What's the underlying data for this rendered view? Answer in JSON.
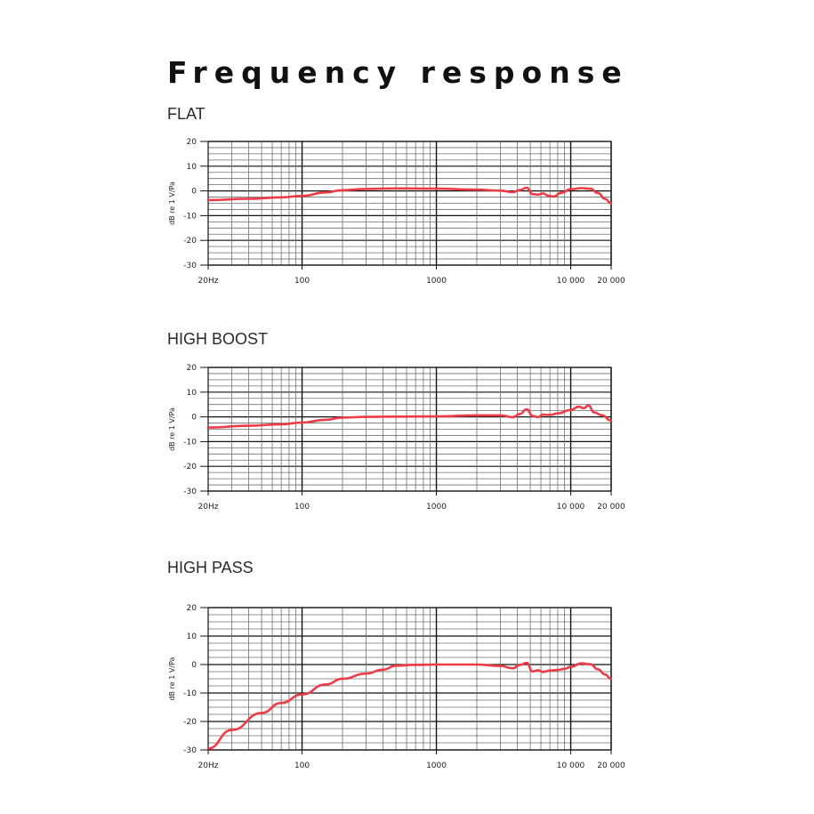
{
  "page": {
    "title": "Frequency response"
  },
  "colors": {
    "curve": "#ef3b47",
    "grid_minor": "#6f6f6f",
    "grid_major": "#111111"
  },
  "chart_data": [
    {
      "type": "line",
      "title": "FLAT",
      "xlabel": "",
      "ylabel": "dB re 1 V/Pa",
      "x_scale": "log",
      "xlim": [
        20,
        20000
      ],
      "ylim": [
        -30,
        20
      ],
      "x_tick_values": [
        20,
        100,
        1000,
        10000,
        20000
      ],
      "x_tick_labels": [
        "20Hz",
        "100",
        "1000",
        "10 000",
        "20 000"
      ],
      "y_tick_values": [
        20,
        10,
        0,
        -10,
        -20,
        -30
      ],
      "y_tick_labels": [
        "20",
        "10",
        "0",
        "-10",
        "-20",
        "-30"
      ],
      "grid": true,
      "series": [
        {
          "x": [
            20,
            40,
            70,
            100,
            150,
            200,
            300,
            500,
            1000,
            2000,
            3000,
            3700,
            4200,
            4700,
            5200,
            5700,
            6200,
            6800,
            7400,
            8500,
            10000,
            12000,
            14000,
            16000,
            18000,
            20000
          ],
          "y": [
            -3.7,
            -3.2,
            -2.6,
            -2,
            -0.6,
            0.3,
            0.8,
            1,
            0.9,
            0.5,
            0.1,
            -0.5,
            0.4,
            1.3,
            -1.3,
            -1.5,
            -1.0,
            -1.9,
            -2.3,
            -0.8,
            0.7,
            1.1,
            0.9,
            -0.9,
            -3.2,
            -5
          ]
        }
      ]
    },
    {
      "type": "line",
      "title": "HIGH BOOST",
      "xlabel": "",
      "ylabel": "dB re 1 V/Pa",
      "x_scale": "log",
      "xlim": [
        20,
        20000
      ],
      "ylim": [
        -30,
        20
      ],
      "x_tick_values": [
        20,
        100,
        1000,
        10000,
        20000
      ],
      "x_tick_labels": [
        "20Hz",
        "100",
        "1000",
        "10 000",
        "20 000"
      ],
      "y_tick_values": [
        20,
        10,
        0,
        -10,
        -20,
        -30
      ],
      "y_tick_labels": [
        "20",
        "10",
        "0",
        "-10",
        "-20",
        "-30"
      ],
      "grid": true,
      "series": [
        {
          "x": [
            20,
            40,
            70,
            100,
            150,
            200,
            300,
            500,
            1000,
            2000,
            3000,
            3700,
            4200,
            4700,
            5200,
            5700,
            6200,
            7000,
            8000,
            10000,
            11500,
            12500,
            13500,
            15000,
            17000,
            20000
          ],
          "y": [
            -4.3,
            -3.6,
            -3,
            -2.3,
            -1.2,
            -0.3,
            0,
            0.1,
            0.2,
            0.6,
            0.6,
            -0.1,
            1.2,
            3.1,
            0.4,
            -0.1,
            0.9,
            0.8,
            1.4,
            2.8,
            4.1,
            3.5,
            4.6,
            1.8,
            0.7,
            -1.5
          ]
        }
      ]
    },
    {
      "type": "line",
      "title": "HIGH PASS",
      "xlabel": "",
      "ylabel": "dB re 1 V/Pa",
      "x_scale": "log",
      "xlim": [
        20,
        20000
      ],
      "ylim": [
        -30,
        20
      ],
      "x_tick_values": [
        20,
        100,
        1000,
        10000,
        20000
      ],
      "x_tick_labels": [
        "20Hz",
        "100",
        "1000",
        "10 000",
        "20 000"
      ],
      "y_tick_values": [
        20,
        10,
        0,
        -10,
        -20,
        -30
      ],
      "y_tick_labels": [
        "20",
        "10",
        "0",
        "-10",
        "-20",
        "-30"
      ],
      "grid": true,
      "series": [
        {
          "x": [
            20,
            30,
            50,
            70,
            100,
            150,
            200,
            300,
            400,
            500,
            700,
            1000,
            2000,
            3000,
            3700,
            4200,
            4700,
            5200,
            5700,
            6200,
            7000,
            8000,
            9000,
            10000,
            12000,
            14000,
            16000,
            18000,
            20000
          ],
          "y": [
            -29.5,
            -23,
            -17,
            -13.5,
            -10.5,
            -7,
            -5,
            -3.2,
            -1.8,
            -0.4,
            -0.1,
            0,
            0,
            -0.5,
            -1.3,
            -0.1,
            0.6,
            -2.4,
            -2.0,
            -2.6,
            -2.1,
            -1.9,
            -1.5,
            -0.8,
            0.4,
            0.1,
            -1.7,
            -3.5,
            -5
          ]
        }
      ]
    }
  ]
}
